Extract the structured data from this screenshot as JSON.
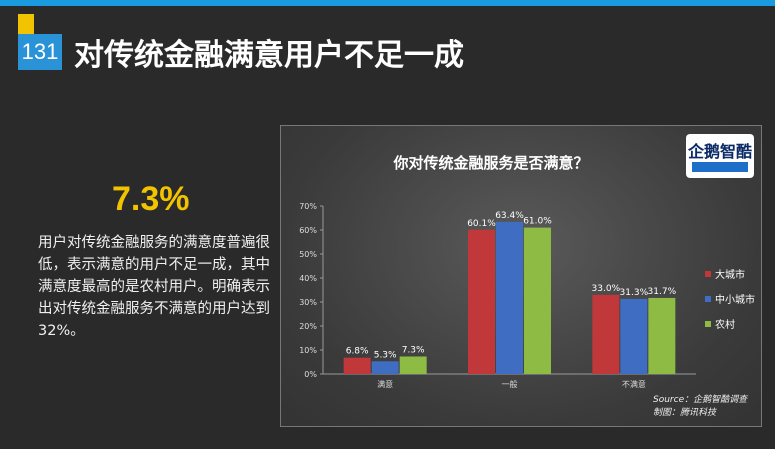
{
  "header": {
    "slide_number": "131",
    "title": "对传统金融满意用户不足一成"
  },
  "highlight": {
    "stat": "7.3%",
    "description": "用户对传统金融服务的满意度普遍很低，表示满意的用户不足一成，其中满意度最高的是农村用户。明确表示出对传统金融服务不满意的用户达到32%。"
  },
  "chart_data": {
    "type": "bar",
    "title": "你对传统金融服务是否满意？",
    "categories": [
      "满意",
      "一般",
      "不满意"
    ],
    "series": [
      {
        "name": "大城市",
        "values": [
          6.8,
          60.1,
          33.0
        ],
        "color": "#c0383a"
      },
      {
        "name": "中小城市",
        "values": [
          5.3,
          63.4,
          31.3
        ],
        "color": "#3f6dc2"
      },
      {
        "name": "农村",
        "values": [
          7.3,
          61.0,
          31.7
        ],
        "color": "#8dbb43"
      }
    ],
    "data_labels": [
      [
        "6.8%",
        "60.1%",
        "33.0%"
      ],
      [
        "5.3%",
        "63.4%",
        "31.3%"
      ],
      [
        "7.3%",
        "61.0%",
        "31.7%"
      ]
    ],
    "ylim": [
      0,
      70
    ],
    "yticks": [
      "0%",
      "10%",
      "20%",
      "30%",
      "40%",
      "50%",
      "60%",
      "70%"
    ],
    "grid": false,
    "legend_position": "right"
  },
  "chart_meta": {
    "logo_text": "企鹅智酷",
    "source_line": "Source：企鹅智酷调查",
    "made_by_line": "制图：腾讯科技"
  }
}
